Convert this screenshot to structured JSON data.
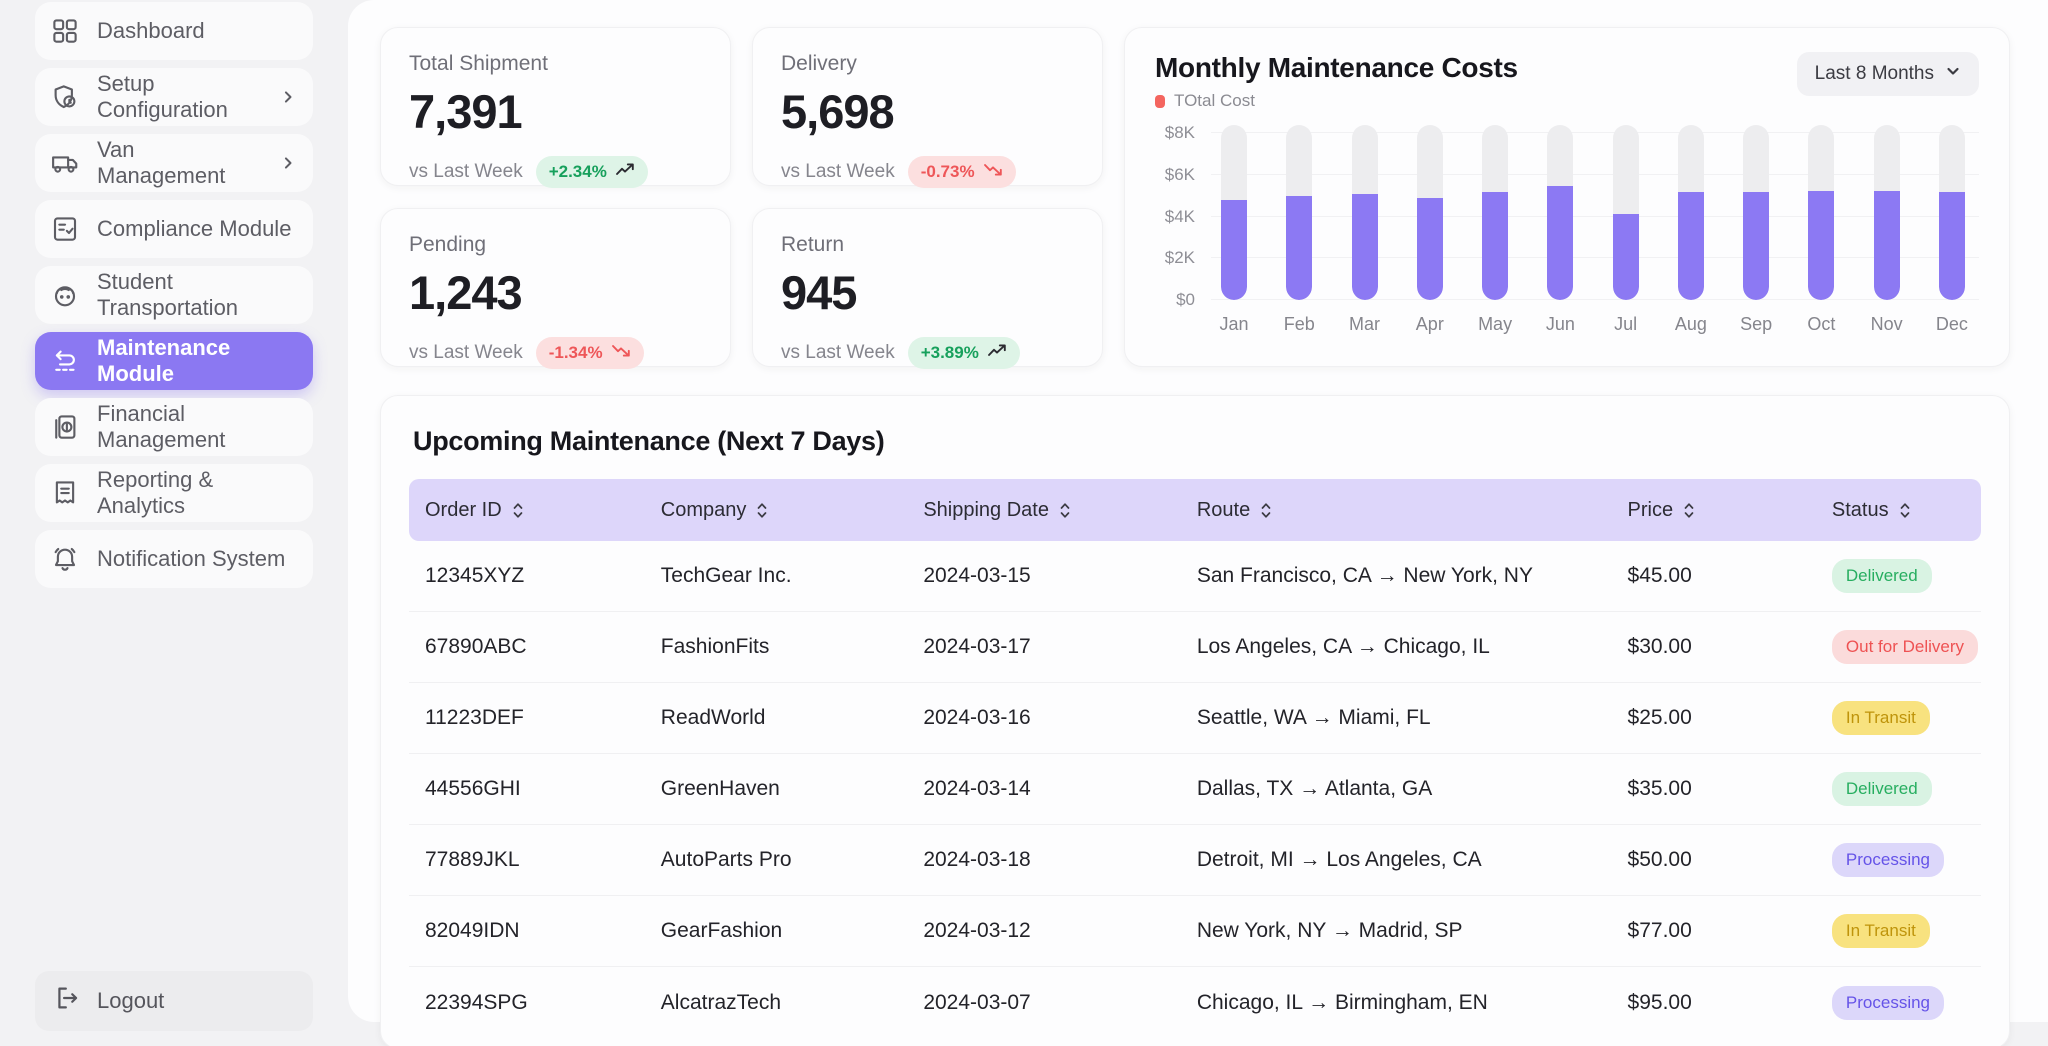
{
  "sidebar": {
    "items": [
      {
        "label": "Dashboard",
        "icon": "grid-icon",
        "active": false,
        "chevron": false
      },
      {
        "label": "Setup Configuration",
        "icon": "shield-gear-icon",
        "active": false,
        "chevron": true
      },
      {
        "label": "Van Management",
        "icon": "van-icon",
        "active": false,
        "chevron": true
      },
      {
        "label": "Compliance Module",
        "icon": "checklist-icon",
        "active": false,
        "chevron": false
      },
      {
        "label": "Student Transportation",
        "icon": "student-icon",
        "active": false,
        "chevron": false
      },
      {
        "label": "Maintenance Module",
        "icon": "maintenance-icon",
        "active": true,
        "chevron": false
      },
      {
        "label": "Financial Management",
        "icon": "finance-icon",
        "active": false,
        "chevron": false
      },
      {
        "label": "Reporting & Analytics",
        "icon": "report-icon",
        "active": false,
        "chevron": false
      },
      {
        "label": "Notification System",
        "icon": "bell-icon",
        "active": false,
        "chevron": false
      }
    ],
    "logout_label": "Logout",
    "active_color": "#8b78f2"
  },
  "stats": [
    {
      "title": "Total Shipment",
      "value": "7,391",
      "compare_label": "vs Last Week",
      "change": "+2.34%",
      "direction": "up"
    },
    {
      "title": "Delivery",
      "value": "5,698",
      "compare_label": "vs Last Week",
      "change": "-0.73%",
      "direction": "down"
    },
    {
      "title": "Pending",
      "value": "1,243",
      "compare_label": "vs Last Week",
      "change": "-1.34%",
      "direction": "down"
    },
    {
      "title": "Return",
      "value": "945",
      "compare_label": "vs Last Week",
      "change": "+3.89%",
      "direction": "up"
    }
  ],
  "chart": {
    "title": "Monthly Maintenance Costs",
    "legend_label": "TOtal Cost",
    "legend_color": "#f4655f",
    "range_selector": "Last 8 Months"
  },
  "chart_data": {
    "type": "bar",
    "title": "Monthly Maintenance Costs",
    "categories": [
      "Jan",
      "Feb",
      "Mar",
      "Apr",
      "May",
      "Jun",
      "Jul",
      "Aug",
      "Sep",
      "Oct",
      "Nov",
      "Dec"
    ],
    "series": [
      {
        "name": "TOtal Cost",
        "values": [
          4800,
          5000,
          5100,
          4900,
          5200,
          5450,
          4150,
          5200,
          5200,
          5250,
          5250,
          5200
        ]
      }
    ],
    "xlabel": "",
    "ylabel": "",
    "ylim": [
      0,
      8400
    ],
    "yticks": [
      0,
      2000,
      4000,
      6000,
      8000
    ],
    "ytick_labels": [
      "$0",
      "$2K",
      "$4K",
      "$6K",
      "$8K"
    ],
    "grid": true,
    "legend_position": "top-left",
    "bar_color": "#8c79f3",
    "track_color": "#ededef",
    "track_max": 8400
  },
  "table": {
    "title": "Upcoming Maintenance (Next 7 Days)",
    "columns": [
      "Order ID",
      "Company",
      "Shipping Date",
      "Route",
      "Price",
      "Status"
    ],
    "rows": [
      {
        "order_id": "12345XYZ",
        "company": "TechGear Inc.",
        "shipping_date": "2024-03-15",
        "route": "San Francisco, CA → New York, NY",
        "price": "$45.00",
        "status": "Delivered"
      },
      {
        "order_id": "67890ABC",
        "company": "FashionFits",
        "shipping_date": "2024-03-17",
        "route": "Los Angeles, CA → Chicago, IL",
        "price": "$30.00",
        "status": "Out for Delivery"
      },
      {
        "order_id": "11223DEF",
        "company": "ReadWorld",
        "shipping_date": "2024-03-16",
        "route": "Seattle, WA → Miami, FL",
        "price": "$25.00",
        "status": "In Transit"
      },
      {
        "order_id": "44556GHI",
        "company": "GreenHaven",
        "shipping_date": "2024-03-14",
        "route": "Dallas, TX → Atlanta, GA",
        "price": "$35.00",
        "status": "Delivered"
      },
      {
        "order_id": "77889JKL",
        "company": "AutoParts Pro",
        "shipping_date": "2024-03-18",
        "route": "Detroit, MI → Los Angeles, CA",
        "price": "$50.00",
        "status": "Processing"
      },
      {
        "order_id": "82049IDN",
        "company": "GearFashion",
        "shipping_date": "2024-03-12",
        "route": "New York, NY → Madrid, SP",
        "price": "$77.00",
        "status": "In Transit"
      },
      {
        "order_id": "22394SPG",
        "company": "AlcatrazTech",
        "shipping_date": "2024-03-07",
        "route": "Chicago, IL → Birmingham, EN",
        "price": "$95.00",
        "status": "Processing"
      }
    ],
    "status_styles": {
      "Delivered": {
        "bg": "#d9f3e3",
        "color": "#27ae60"
      },
      "Out for Delivery": {
        "bg": "#fbdbdb",
        "color": "#ee5253"
      },
      "In Transit": {
        "bg": "#f8e27f",
        "color": "#bf940b"
      },
      "Processing": {
        "bg": "#dcd7fa",
        "color": "#6553e8"
      }
    }
  }
}
